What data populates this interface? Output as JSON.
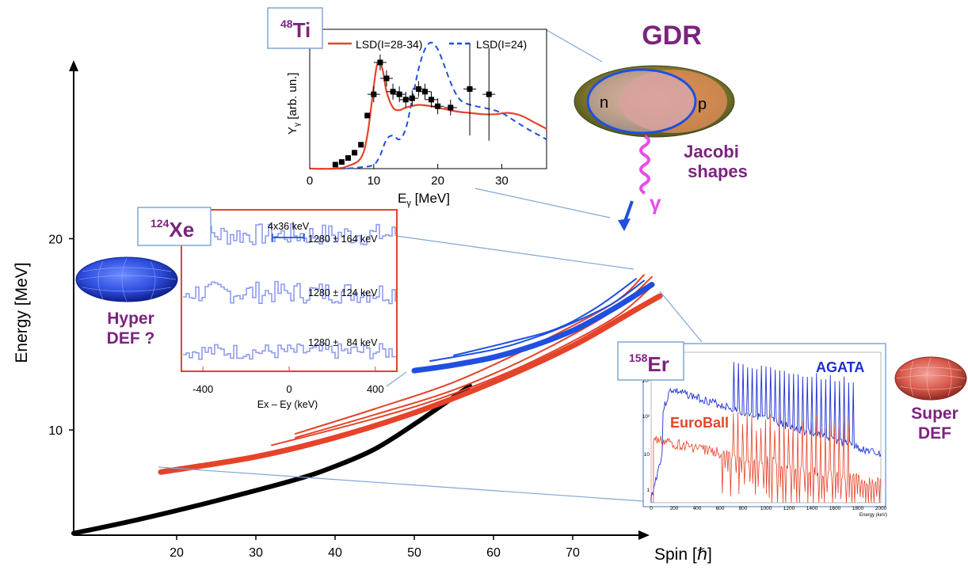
{
  "chart_data": [
    {
      "type": "line",
      "xlabel": "Spin [ℏ]",
      "ylabel": "Energy [MeV]",
      "xticks": [
        20,
        30,
        40,
        50,
        60,
        70
      ],
      "yticks": [
        10,
        20
      ],
      "xlim": [
        7,
        87
      ],
      "ylim": [
        4.5,
        29
      ],
      "series": [
        {
          "color": "#000000",
          "x": [
            7,
            15,
            25,
            35,
            40,
            45,
            50,
            57
          ],
          "y": [
            4.6,
            5.3,
            6.3,
            7.4,
            8.1,
            9.0,
            10.3,
            12.3
          ]
        },
        {
          "color": "#e5432a",
          "x": [
            18,
            30,
            40,
            50,
            60,
            70,
            78,
            81
          ],
          "y": [
            7.8,
            8.6,
            9.6,
            10.9,
            12.5,
            14.4,
            16.3,
            17.0
          ]
        },
        {
          "color": "#e5432a",
          "x": [
            32,
            45,
            55,
            65,
            75,
            80
          ],
          "y": [
            9.2,
            10.6,
            11.9,
            13.6,
            15.8,
            17.5
          ]
        },
        {
          "color": "#e5432a",
          "x": [
            35,
            45,
            55,
            65,
            75,
            80
          ],
          "y": [
            9.6,
            10.8,
            12.1,
            13.9,
            16.2,
            18.0
          ]
        },
        {
          "color": "#e5432a",
          "x": [
            35,
            45,
            55,
            65,
            75,
            79
          ],
          "y": [
            9.8,
            11.1,
            12.5,
            14.4,
            16.6,
            18.1
          ]
        },
        {
          "color": "#1f4fe0",
          "x": [
            50,
            55,
            60,
            65,
            70,
            75,
            80
          ],
          "y": [
            13.1,
            13.4,
            13.8,
            14.4,
            15.2,
            16.3,
            17.6
          ]
        },
        {
          "color": "#1f4fe0",
          "x": [
            52,
            60,
            65,
            70,
            75,
            79
          ],
          "y": [
            13.6,
            14.2,
            14.8,
            15.6,
            16.6,
            17.8
          ]
        },
        {
          "color": "#1f4fe0",
          "x": [
            55,
            62,
            68,
            73,
            78
          ],
          "y": [
            13.9,
            14.6,
            15.3,
            16.4,
            17.9
          ]
        }
      ]
    },
    {
      "type": "line",
      "xlabel": "Eγ [MeV]",
      "ylabel": "Yγ [arb. un.]",
      "xticks": [
        0,
        10,
        20,
        30
      ],
      "xlim": [
        0,
        37
      ],
      "ylim": [
        0,
        1.05
      ],
      "series": [
        {
          "name": "LSD(I=28-34)",
          "color": "#e5432a",
          "x": [
            0,
            4,
            6,
            8,
            9,
            10,
            10.5,
            11,
            11.5,
            12,
            13,
            14,
            15,
            17,
            19,
            21,
            23,
            25,
            27,
            29,
            31,
            33,
            35,
            37
          ],
          "y": [
            0,
            0,
            0.02,
            0.08,
            0.25,
            0.62,
            0.78,
            0.8,
            0.72,
            0.58,
            0.46,
            0.44,
            0.46,
            0.48,
            0.47,
            0.45,
            0.43,
            0.42,
            0.41,
            0.41,
            0.42,
            0.4,
            0.35,
            0.3
          ]
        },
        {
          "name": "LSD(I=24)",
          "color": "#1f4fe0",
          "x": [
            0,
            5,
            8,
            10,
            11,
            12,
            13,
            14,
            15,
            16,
            17,
            18,
            19,
            20,
            21,
            22,
            23,
            24,
            26,
            28,
            30,
            32,
            34,
            37
          ],
          "y": [
            0,
            0,
            0.01,
            0.03,
            0.1,
            0.22,
            0.25,
            0.22,
            0.3,
            0.52,
            0.75,
            0.9,
            0.95,
            0.9,
            0.78,
            0.65,
            0.55,
            0.5,
            0.47,
            0.45,
            0.42,
            0.36,
            0.3,
            0.22
          ]
        },
        {
          "name": "data",
          "color": "#000000",
          "x": [
            4,
            5,
            6,
            7,
            8,
            9,
            10,
            11,
            12,
            13,
            14,
            15,
            16,
            17,
            18,
            19,
            20,
            22,
            25,
            28
          ],
          "y": [
            0.03,
            0.05,
            0.08,
            0.12,
            0.18,
            0.4,
            0.56,
            0.8,
            0.68,
            0.58,
            0.56,
            0.52,
            0.53,
            0.6,
            0.58,
            0.52,
            0.47,
            0.46,
            0.6,
            0.56
          ]
        }
      ]
    },
    {
      "type": "line",
      "xlabel": "Ex – Ey (keV)",
      "xticks": [
        -400,
        0,
        400
      ],
      "xlim": [
        -500,
        500
      ],
      "annotations": [
        "4x36 keV",
        "1280 ± 164 keV",
        "1280 ± 124 keV",
        "1280 ±   84 keV"
      ]
    },
    {
      "type": "line",
      "xlabel": "Energy (keV)",
      "xticks": [
        0,
        200,
        400,
        600,
        800,
        1000,
        1200,
        1400,
        1600,
        1800,
        2000
      ],
      "xlim": [
        0,
        2000
      ],
      "yticks_label": [
        "1",
        "10",
        "10²",
        "10³"
      ],
      "series": [
        {
          "name": "AGATA",
          "color": "#1f2fd0"
        },
        {
          "name": "EuroBall",
          "color": "#e5432a"
        }
      ]
    }
  ],
  "labels": {
    "ti": {
      "mass": "48",
      "sym": "Ti"
    },
    "xe": {
      "mass": "124",
      "sym": "Xe"
    },
    "er": {
      "mass": "158",
      "sym": "Er"
    },
    "gdr": "GDR",
    "n": "n",
    "p": "p",
    "jacobi": [
      "Jacobi",
      "shapes"
    ],
    "gamma": "γ",
    "hyper": [
      "Hyper",
      "DEF ?"
    ],
    "super": [
      "Super",
      "DEF"
    ],
    "agata": "AGATA",
    "euroball": "EuroBall"
  },
  "colors": {
    "purple": "#7b237e",
    "red": "#e5432a",
    "blue": "#1f4fe0",
    "magenta": "#e84ce8"
  }
}
